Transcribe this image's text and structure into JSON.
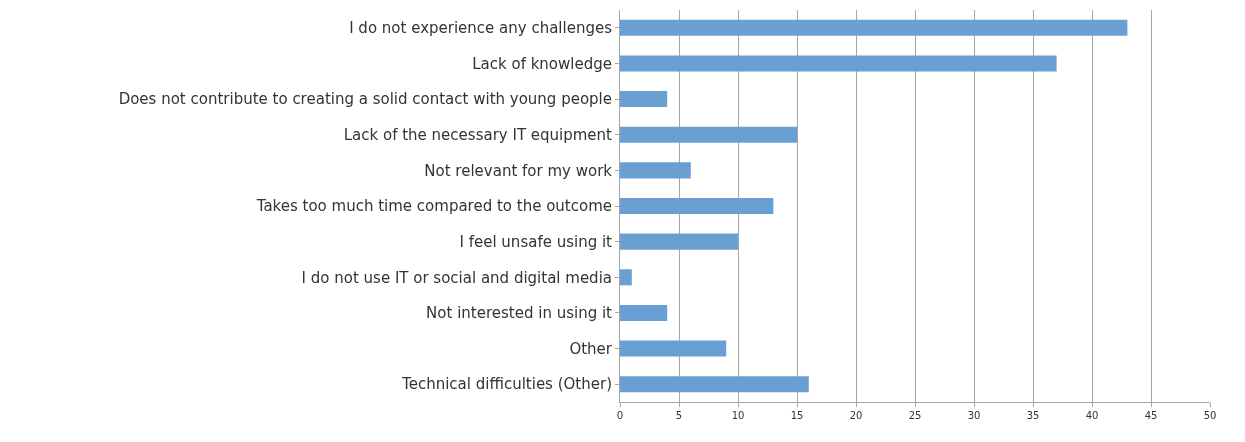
{
  "chart_data": {
    "type": "bar",
    "orientation": "horizontal",
    "categories": [
      "I do not experience any challenges",
      "Lack of knowledge",
      "Does not contribute to creating a solid contact with young people",
      "Lack of the necessary IT equipment",
      "Not relevant for my work",
      "Takes too much time compared to the outcome",
      "I feel unsafe using it",
      "I do not use IT or social and digital media",
      "Not interested in using it",
      "Other",
      "Technical difficulties (Other)"
    ],
    "values": [
      43,
      37,
      4,
      15,
      6,
      13,
      10,
      1,
      4,
      9,
      16
    ],
    "color": "#6a9fd4",
    "xlim": [
      0,
      50
    ],
    "xticks": [
      0,
      5,
      10,
      15,
      20,
      25,
      30,
      35,
      40,
      45,
      50
    ],
    "grid": "x"
  }
}
